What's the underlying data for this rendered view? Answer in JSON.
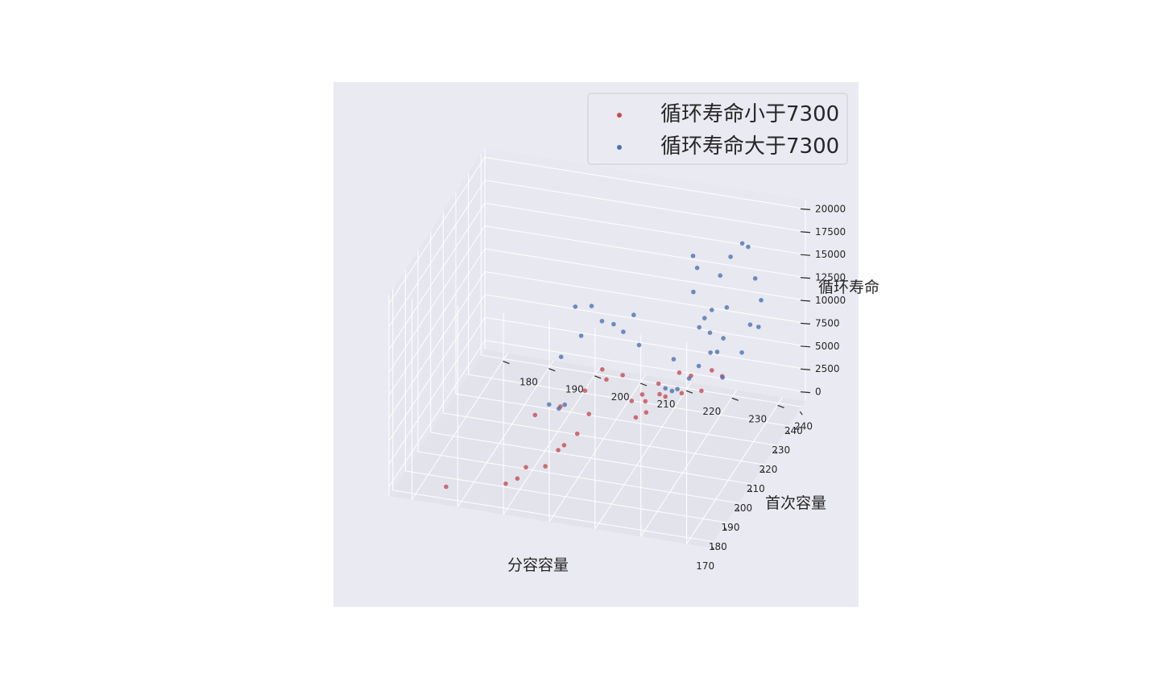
{
  "chart_data": {
    "type": "scatter",
    "projection": "3d",
    "style": "seaborn-darkgrid",
    "grid": true,
    "legend_position": "top-right",
    "axes": {
      "x": {
        "label": "分容容量",
        "ticks": [
          170,
          180,
          190,
          200,
          210,
          220,
          230,
          240
        ],
        "lim": [
          167,
          243
        ]
      },
      "y": {
        "label": "首次容量",
        "ticks": [
          180,
          190,
          200,
          210,
          220,
          230,
          240
        ],
        "lim": [
          175,
          245
        ]
      },
      "z": {
        "label": "循环寿命",
        "ticks": [
          0,
          2500,
          5000,
          7500,
          10000,
          12500,
          15000,
          17500,
          20000
        ],
        "lim": [
          -1000,
          21000
        ]
      }
    },
    "series": [
      {
        "name": "循环寿命小于7300",
        "color": "#c44e52",
        "points": [
          [
            170.5,
            186.5,
            200
          ],
          [
            176,
            198,
            300
          ],
          [
            178,
            200,
            600
          ],
          [
            177.5,
            202,
            2100
          ],
          [
            182,
            205,
            1500
          ],
          [
            185,
            207,
            2800
          ],
          [
            186,
            208,
            3200
          ],
          [
            185.5,
            211,
            4800
          ],
          [
            187.5,
            213,
            6700
          ],
          [
            192,
            200,
            4600
          ],
          [
            194,
            205,
            5500
          ],
          [
            192,
            222,
            6100
          ],
          [
            193,
            224,
            6600
          ],
          [
            196,
            220,
            6900
          ],
          [
            196,
            223,
            7100
          ],
          [
            200,
            225,
            7200
          ],
          [
            201,
            226,
            6800
          ],
          [
            203,
            229,
            7000
          ],
          [
            199,
            209,
            6500
          ],
          [
            205,
            212,
            6700
          ],
          [
            209,
            210,
            6800
          ],
          [
            207,
            215,
            7000
          ],
          [
            208,
            219,
            5000
          ],
          [
            210,
            222,
            6000
          ],
          [
            212,
            226,
            7100
          ],
          [
            214,
            228,
            6500
          ],
          [
            215,
            230,
            4800
          ],
          [
            216,
            232,
            7000
          ],
          [
            217,
            234,
            6300
          ]
        ]
      },
      {
        "name": "循环寿命大于7300",
        "color": "#4c72b0",
        "points": [
          [
            170.5,
            209,
            11000
          ],
          [
            171,
            211,
            10600
          ],
          [
            172,
            212,
            10900
          ],
          [
            180,
            209,
            14200
          ],
          [
            184,
            211,
            19000
          ],
          [
            185,
            212,
            15700
          ],
          [
            186,
            214,
            18900
          ],
          [
            187,
            216,
            17200
          ],
          [
            189,
            218,
            16600
          ],
          [
            193,
            219,
            15000
          ],
          [
            194,
            221,
            16800
          ],
          [
            191,
            223,
            14300
          ],
          [
            193,
            230,
            12900
          ],
          [
            205,
            231,
            17800
          ],
          [
            208,
            231,
            19800
          ],
          [
            212,
            229,
            20100
          ],
          [
            216,
            232,
            13600
          ],
          [
            217,
            235,
            13900
          ],
          [
            219,
            233,
            16800
          ],
          [
            220,
            235,
            18800
          ],
          [
            222,
            237,
            20000
          ],
          [
            223,
            238,
            19500
          ],
          [
            225,
            239,
            15700
          ],
          [
            226,
            240,
            13200
          ],
          [
            207,
            237,
            12800
          ],
          [
            204,
            235,
            11700
          ],
          [
            202,
            233,
            10500
          ],
          [
            198,
            232,
            9900
          ],
          [
            196,
            230,
            9000
          ],
          [
            199,
            228,
            8000
          ],
          [
            201,
            226,
            7700
          ],
          [
            210,
            236,
            7800
          ],
          [
            213,
            234,
            9800
          ],
          [
            218,
            238,
            9000
          ],
          [
            221,
            239,
            11500
          ],
          [
            224,
            240,
            10700
          ],
          [
            200,
            236,
            14800
          ],
          [
            203,
            234,
            15600
          ],
          [
            206,
            232,
            13800
          ]
        ]
      }
    ]
  }
}
